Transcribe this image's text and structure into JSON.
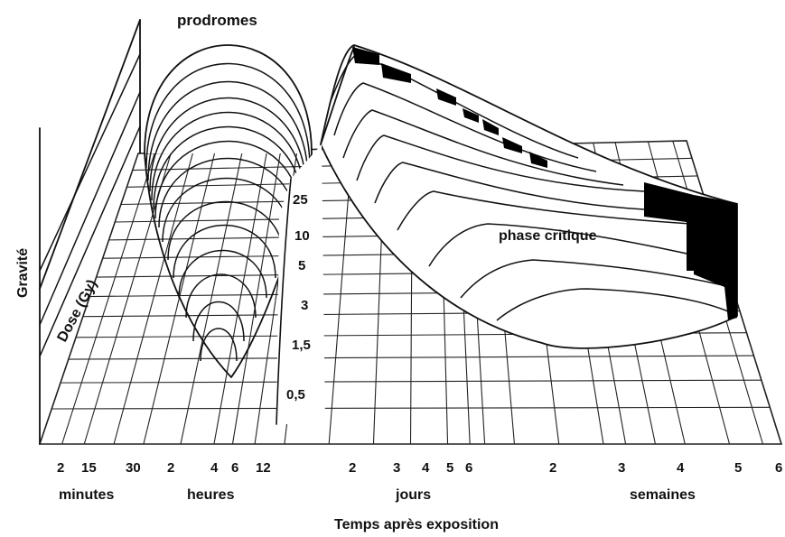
{
  "labels": {
    "prodromes": "prodromes",
    "phase_critique": "phase critique",
    "gravite": "Gravité",
    "dose": "Dose (Gy)",
    "x_axis_title": "Temps après exposition"
  },
  "dose_ticks": [
    "25",
    "10",
    "5",
    "3",
    "1,5",
    "0,5"
  ],
  "time_ticks": {
    "minutes": [
      "2",
      "15",
      "30"
    ],
    "heures": [
      "2",
      "4",
      "6",
      "12"
    ],
    "jours": [
      "2",
      "3",
      "4",
      "5",
      "6"
    ],
    "semaines": [
      "2",
      "3",
      "4",
      "5",
      "6"
    ]
  },
  "time_units": {
    "minutes": "minutes",
    "heures": "heures",
    "jours": "jours",
    "semaines": "semaines"
  },
  "colors": {
    "ink": "#111111",
    "background": "#ffffff"
  }
}
